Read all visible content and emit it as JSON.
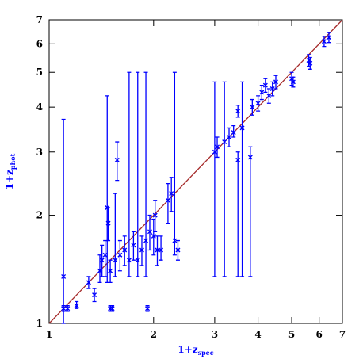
{
  "chart_data": {
    "type": "scatter",
    "xlabel": "1+z",
    "xlabel_sub": "spec",
    "ylabel": "1+z",
    "ylabel_sub": "phot",
    "log_x": true,
    "log_y": true,
    "xlim": [
      1,
      7
    ],
    "ylim": [
      1,
      7
    ],
    "xticks": [
      1,
      2,
      3,
      4,
      5,
      6,
      7
    ],
    "yticks": [
      1,
      2,
      3,
      4,
      5,
      6,
      7
    ],
    "color": "#0000ff",
    "label_color": "#0000ff",
    "diagonal_color": "#a52a2a",
    "x": [
      1.1,
      1.1,
      1.13,
      1.2,
      1.3,
      1.35,
      1.4,
      1.42,
      1.45,
      1.47,
      1.48,
      1.5,
      1.5,
      1.52,
      1.55,
      1.57,
      1.6,
      1.65,
      1.7,
      1.75,
      1.8,
      1.85,
      1.9,
      1.92,
      1.95,
      2.0,
      2.02,
      2.05,
      2.1,
      2.2,
      2.25,
      2.35,
      2.3,
      3.0,
      3.05,
      3.2,
      3.3,
      3.4,
      3.5,
      3.5,
      3.6,
      3.8,
      3.85,
      4.0,
      4.1,
      4.2,
      4.3,
      4.4,
      4.5,
      5.0,
      5.05,
      5.6,
      5.65,
      6.2,
      6.4
    ],
    "y": [
      1.35,
      1.1,
      1.1,
      1.12,
      1.3,
      1.2,
      1.4,
      1.5,
      1.55,
      2.1,
      1.9,
      1.1,
      1.4,
      1.1,
      1.5,
      2.85,
      1.55,
      1.6,
      1.5,
      1.65,
      1.5,
      1.6,
      1.7,
      1.1,
      1.8,
      1.75,
      2.0,
      1.6,
      1.6,
      2.2,
      2.3,
      1.6,
      1.7,
      3.0,
      3.1,
      3.2,
      3.3,
      3.4,
      3.9,
      2.85,
      3.5,
      2.9,
      4.0,
      4.1,
      4.4,
      4.6,
      4.3,
      4.5,
      4.7,
      4.8,
      4.7,
      5.4,
      5.3,
      6.1,
      6.25
    ],
    "ylow": [
      1.0,
      1.08,
      1.08,
      1.1,
      1.25,
      1.15,
      1.3,
      1.35,
      1.35,
      1.3,
      1.7,
      1.08,
      1.3,
      1.08,
      1.35,
      2.5,
      1.4,
      1.45,
      1.35,
      1.5,
      1.35,
      1.45,
      1.35,
      1.08,
      1.6,
      1.55,
      1.8,
      1.45,
      1.5,
      1.9,
      2.05,
      1.5,
      1.55,
      1.35,
      2.9,
      1.35,
      3.1,
      3.3,
      3.75,
      1.35,
      1.35,
      1.35,
      3.8,
      3.9,
      4.2,
      4.4,
      4.1,
      4.3,
      4.5,
      4.6,
      4.55,
      5.2,
      5.1,
      5.9,
      6.05
    ],
    "yhigh": [
      3.7,
      1.12,
      1.12,
      1.15,
      1.35,
      1.25,
      1.55,
      1.65,
      1.7,
      4.3,
      2.1,
      1.12,
      1.5,
      1.12,
      2.3,
      3.2,
      1.7,
      1.75,
      5.0,
      1.8,
      5.0,
      1.75,
      5.0,
      1.12,
      2.0,
      1.95,
      2.2,
      1.75,
      1.75,
      2.45,
      2.55,
      1.7,
      5.0,
      4.7,
      3.3,
      4.7,
      3.5,
      3.55,
      4.05,
      3.0,
      4.7,
      3.1,
      4.2,
      4.3,
      4.6,
      4.8,
      4.5,
      4.7,
      4.9,
      5.0,
      4.85,
      5.6,
      5.5,
      6.3,
      6.45
    ]
  }
}
